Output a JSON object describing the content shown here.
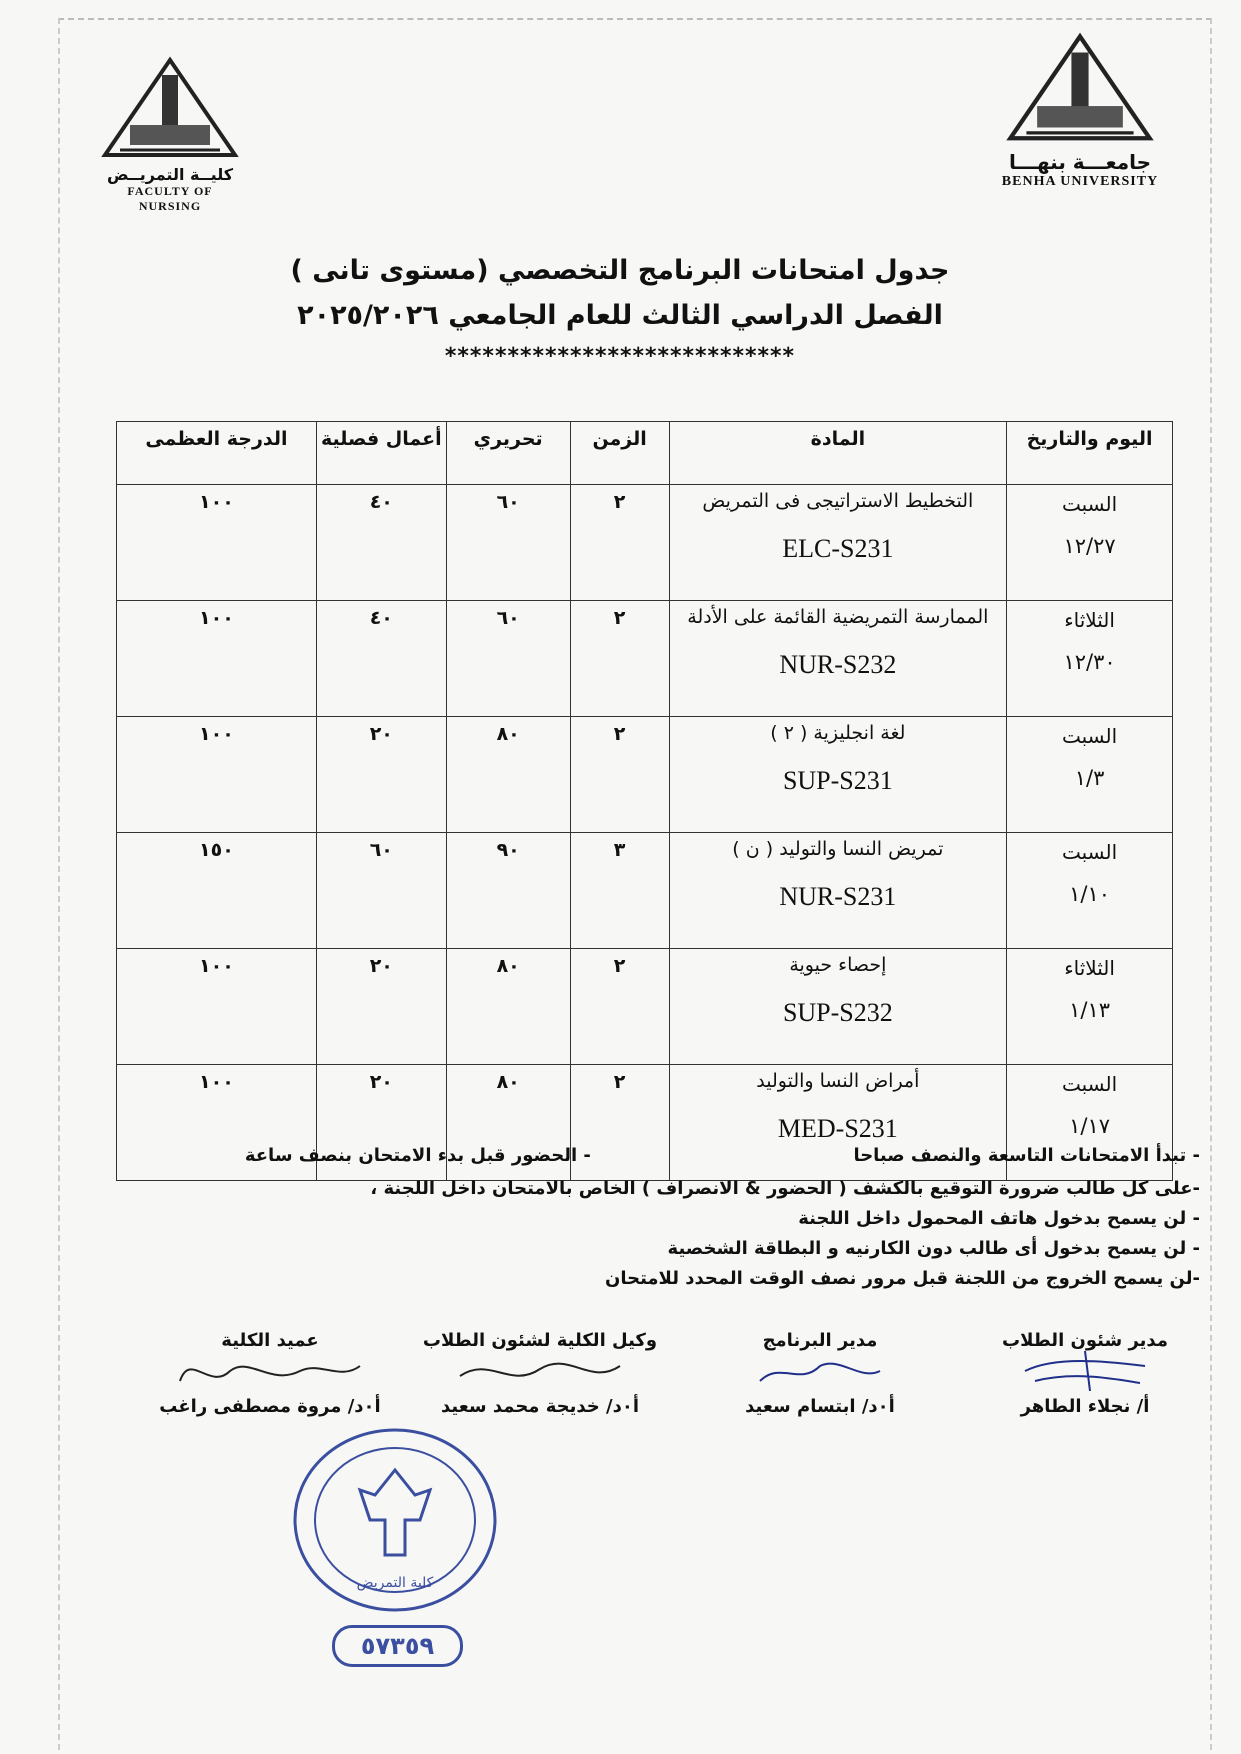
{
  "header": {
    "left_logo": {
      "arabic": "كليــة التمريــض",
      "english": "FACULTY OF NURSING",
      "seal_text": "BENHA UNIVERSITY"
    },
    "right_logo": {
      "arabic": "جامعـــة بنهـــا",
      "english": "BENHA UNIVERSITY",
      "seal_text": "BENHA UNIVERSITY"
    }
  },
  "title": {
    "line1": "جدول امتحانات البرنامج التخصصي (مستوى تانى )",
    "line2": "الفصل الدراسي الثالث للعام الجامعي ٢٠٢٥/٢٠٢٦",
    "stars": "****************************"
  },
  "table": {
    "columns": [
      "اليوم والتاريخ",
      "المادة",
      "الزمن",
      "تحريري",
      "أعمال فصلية",
      "الدرجة العظمى"
    ],
    "rows": [
      {
        "day": "السبت",
        "date": "١٢/٢٧",
        "subject": "التخطيط الاستراتيجى فى التمريض",
        "code": "ELC-S231",
        "time": "٢",
        "written": "٦٠",
        "coursework": "٤٠",
        "total": "١٠٠"
      },
      {
        "day": "الثلاثاء",
        "date": "١٢/٣٠",
        "subject": "الممارسة التمريضية القائمة على الأدلة",
        "code": "NUR-S232",
        "time": "٢",
        "written": "٦٠",
        "coursework": "٤٠",
        "total": "١٠٠"
      },
      {
        "day": "السبت",
        "date": "١/٣",
        "subject": "لغة انجليزية ( ٢ )",
        "code": "SUP-S231",
        "time": "٢",
        "written": "٨٠",
        "coursework": "٢٠",
        "total": "١٠٠"
      },
      {
        "day": "السبت",
        "date": "١/١٠",
        "subject": "تمريض النسا والتوليد ( ن )",
        "code": "NUR-S231",
        "time": "٣",
        "written": "٩٠",
        "coursework": "٦٠",
        "total": "١٥٠"
      },
      {
        "day": "الثلاثاء",
        "date": "١/١٣",
        "subject": "إحصاء حيوية",
        "code": "SUP-S232",
        "time": "٢",
        "written": "٨٠",
        "coursework": "٢٠",
        "total": "١٠٠"
      },
      {
        "day": "السبت",
        "date": "١/١٧",
        "subject": "أمراض النسا والتوليد",
        "code": "MED-S231",
        "time": "٢",
        "written": "٨٠",
        "coursework": "٢٠",
        "total": "١٠٠"
      }
    ]
  },
  "notes": {
    "line1a": "- تبدأ الامتحانات التاسعة والنصف صباحا",
    "line1b": "- الحضور قبل بدء الامتحان بنصف ساعة",
    "line2": "-على كل طالب ضرورة التوقيع بالكشف ( الحضور & الانصراف ) الخاص بالامتحان داخل اللجنة ،",
    "line3": "- لن يسمح بدخول هاتف المحمول داخل اللجنة",
    "line4": "- لن يسمح بدخول أى طالب دون الكارنيه و البطاقة الشخصية",
    "line5": "-لن يسمح الخروج من اللجنة قبل مرور نصف الوقت المحدد للامتحان"
  },
  "signatures": [
    {
      "role": "مدير شئون الطلاب",
      "name": "أ/ نجلاء الطاهر"
    },
    {
      "role": "مدير البرنامج",
      "name": "أ٠د/ ابتسام سعيد"
    },
    {
      "role": "وكيل الكلية لشئون الطلاب",
      "name": "أ٠د/ خديجة محمد سعيد"
    },
    {
      "role": "عميد الكلية",
      "name": "أ٠د/ مروة مصطفى راغب"
    }
  ],
  "stamp": {
    "text": "جامعة بنها - كلية التمريض",
    "serial": "٥٧٣٥٩"
  },
  "colors": {
    "ink": "#111111",
    "stamp_blue": "#3b4fa0",
    "signature_blue": "#1f2f8a"
  }
}
